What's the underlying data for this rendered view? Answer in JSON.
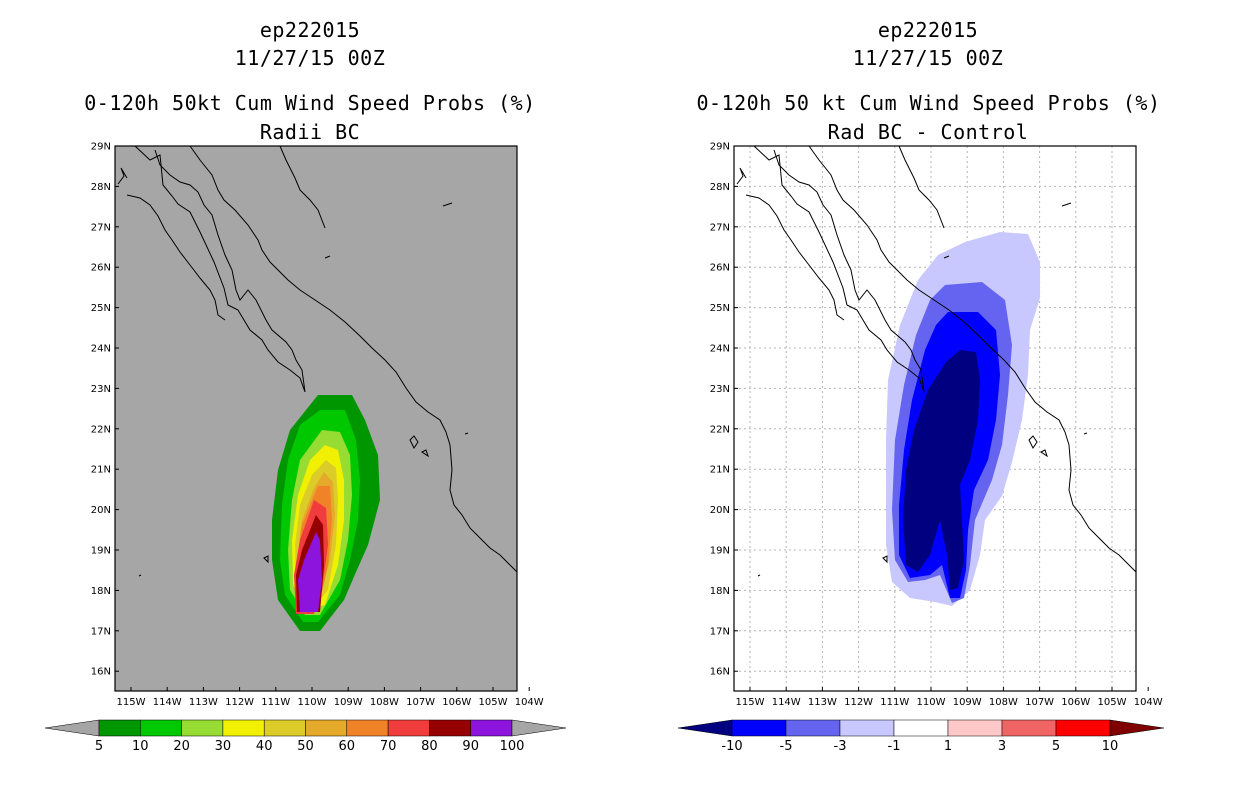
{
  "left_panel": {
    "storm_id": "ep222015",
    "datetime": "11/27/15 00Z",
    "title": "0-120h 50kt Cum Wind Speed Probs (%)",
    "subtitle": "Radii BC",
    "background_color": "#a6a6a6",
    "colorbar": {
      "labels": [
        "5",
        "10",
        "20",
        "30",
        "40",
        "50",
        "60",
        "70",
        "80",
        "90",
        "100"
      ],
      "colors": [
        "#009600",
        "#00c800",
        "#96dc32",
        "#f0f000",
        "#dccc2a",
        "#e6aa2a",
        "#f08228",
        "#f03c3c",
        "#960000",
        "#8c14dc"
      ],
      "under_color": "#a6a6a6",
      "over_color": "#a6a6a6"
    }
  },
  "right_panel": {
    "storm_id": "ep222015",
    "datetime": "11/27/15 00Z",
    "title": "0-120h 50 kt Cum Wind Speed Probs (%)",
    "subtitle": "Rad BC - Control",
    "background_color": "#ffffff",
    "colorbar": {
      "labels": [
        "-10",
        "-5",
        "-3",
        "-1",
        "1",
        "3",
        "5",
        "10"
      ],
      "colors": [
        "#0000ff",
        "#6464f0",
        "#c8c8ff",
        "#ffffff",
        "#ffc8c8",
        "#f06464",
        "#ff0000"
      ],
      "under_color": "#000080",
      "over_color": "#800000"
    }
  },
  "axes": {
    "lat_labels": [
      "29N",
      "28N",
      "27N",
      "26N",
      "25N",
      "24N",
      "23N",
      "22N",
      "21N",
      "20N",
      "19N",
      "18N",
      "17N",
      "16N"
    ],
    "lon_labels": [
      "115W",
      "114W",
      "113W",
      "112W",
      "111W",
      "110W",
      "109W",
      "108W",
      "107W",
      "106W",
      "105W",
      "104W"
    ]
  }
}
